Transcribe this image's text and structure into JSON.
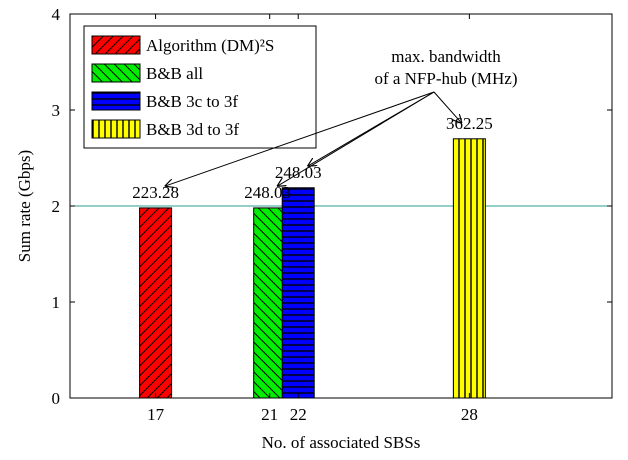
{
  "chart_data": {
    "type": "bar",
    "xlabel": "No. of associated SBSs",
    "ylabel": "Sum rate (Gbps)",
    "ylim": [
      0,
      4
    ],
    "xlim": [
      14,
      33
    ],
    "yticks": [
      0,
      1,
      2,
      3,
      4
    ],
    "xticks": [
      17,
      21,
      22,
      28
    ],
    "grid": false,
    "legend_position": "top-left",
    "reference_line": {
      "y": 2,
      "color": "#2a9d8f"
    },
    "series": [
      {
        "name": "Algorithm (DM)²S",
        "x": 17,
        "value": 1.98,
        "label": "223.28",
        "color": "#ff0000",
        "pattern": "diagonal"
      },
      {
        "name": "B&B all",
        "x": 21,
        "value": 1.98,
        "label": "248.03",
        "color": "#00ee00",
        "pattern": "antidiagonal"
      },
      {
        "name": "B&B 3c to 3f",
        "x": 22,
        "value": 2.19,
        "label": "248.03",
        "color": "#0000ff",
        "pattern": "horizontal"
      },
      {
        "name": "B&B 3d to 3f",
        "x": 28,
        "value": 2.7,
        "label": "362.25",
        "color": "#ffff00",
        "pattern": "vertical"
      }
    ],
    "annotation": {
      "lines": [
        "max. bandwidth",
        "of a NFP-hub (MHz)"
      ]
    }
  }
}
